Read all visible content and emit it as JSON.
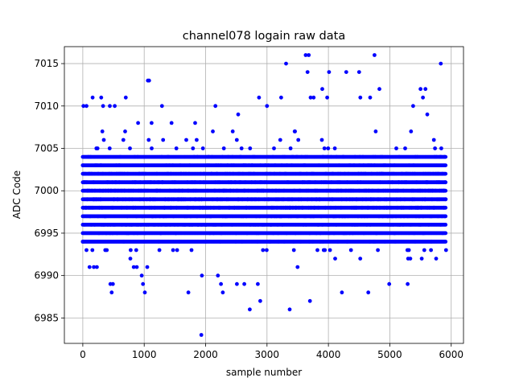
{
  "chart_data": {
    "type": "scatter",
    "title": "channel078 logain raw data",
    "xlabel": "sample number",
    "ylabel": "ADC Code",
    "xlim": [
      -300,
      6200
    ],
    "ylim": [
      6982,
      7017
    ],
    "xticks": [
      0,
      1000,
      2000,
      3000,
      4000,
      5000,
      6000
    ],
    "yticks": [
      6985,
      6990,
      6995,
      7000,
      7005,
      7010,
      7015
    ],
    "grid": true,
    "marker_color": "#0000ff",
    "series": [
      {
        "x_range": [
          0,
          5920
        ],
        "sample_count": 5920,
        "typical_range": [
          6991,
          7008
        ],
        "outliers": [
          {
            "x": 0,
            "y": 6994
          },
          {
            "x": 10,
            "y": 7010
          },
          {
            "x": 60,
            "y": 7010
          },
          {
            "x": 110,
            "y": 6991
          },
          {
            "x": 160,
            "y": 7011
          },
          {
            "x": 180,
            "y": 6991
          },
          {
            "x": 230,
            "y": 6991
          },
          {
            "x": 300,
            "y": 7011
          },
          {
            "x": 330,
            "y": 7010
          },
          {
            "x": 440,
            "y": 7010
          },
          {
            "x": 450,
            "y": 6989
          },
          {
            "x": 470,
            "y": 6988
          },
          {
            "x": 490,
            "y": 6989
          },
          {
            "x": 520,
            "y": 7010
          },
          {
            "x": 700,
            "y": 7011
          },
          {
            "x": 830,
            "y": 6991
          },
          {
            "x": 880,
            "y": 6991
          },
          {
            "x": 960,
            "y": 6990
          },
          {
            "x": 980,
            "y": 6989
          },
          {
            "x": 1010,
            "y": 6988
          },
          {
            "x": 1060,
            "y": 7013
          },
          {
            "x": 1080,
            "y": 7013
          },
          {
            "x": 1120,
            "y": 7008
          },
          {
            "x": 1290,
            "y": 7010
          },
          {
            "x": 1720,
            "y": 6988
          },
          {
            "x": 1830,
            "y": 7008
          },
          {
            "x": 1930,
            "y": 6983
          },
          {
            "x": 1940,
            "y": 6990
          },
          {
            "x": 2160,
            "y": 7010
          },
          {
            "x": 2200,
            "y": 6990
          },
          {
            "x": 2250,
            "y": 6989
          },
          {
            "x": 2280,
            "y": 6988
          },
          {
            "x": 2510,
            "y": 6989
          },
          {
            "x": 2530,
            "y": 7009
          },
          {
            "x": 2630,
            "y": 6989
          },
          {
            "x": 2720,
            "y": 6986
          },
          {
            "x": 2850,
            "y": 6989
          },
          {
            "x": 2870,
            "y": 7011
          },
          {
            "x": 2890,
            "y": 6987
          },
          {
            "x": 3000,
            "y": 7010
          },
          {
            "x": 3230,
            "y": 7011
          },
          {
            "x": 3310,
            "y": 7015
          },
          {
            "x": 3370,
            "y": 6986
          },
          {
            "x": 3630,
            "y": 7016
          },
          {
            "x": 3660,
            "y": 7014
          },
          {
            "x": 3680,
            "y": 7016
          },
          {
            "x": 3700,
            "y": 6987
          },
          {
            "x": 3710,
            "y": 7011
          },
          {
            "x": 3760,
            "y": 7011
          },
          {
            "x": 3900,
            "y": 7012
          },
          {
            "x": 3980,
            "y": 7011
          },
          {
            "x": 4010,
            "y": 7014
          },
          {
            "x": 4220,
            "y": 6988
          },
          {
            "x": 4290,
            "y": 7014
          },
          {
            "x": 4500,
            "y": 7014
          },
          {
            "x": 4520,
            "y": 7011
          },
          {
            "x": 4650,
            "y": 6988
          },
          {
            "x": 4680,
            "y": 7011
          },
          {
            "x": 4750,
            "y": 7016
          },
          {
            "x": 4830,
            "y": 7012
          },
          {
            "x": 4990,
            "y": 6989
          },
          {
            "x": 5290,
            "y": 6989
          },
          {
            "x": 5380,
            "y": 7010
          },
          {
            "x": 5500,
            "y": 7012
          },
          {
            "x": 5540,
            "y": 7011
          },
          {
            "x": 5580,
            "y": 7012
          },
          {
            "x": 5610,
            "y": 7009
          },
          {
            "x": 5830,
            "y": 7015
          }
        ]
      }
    ]
  }
}
